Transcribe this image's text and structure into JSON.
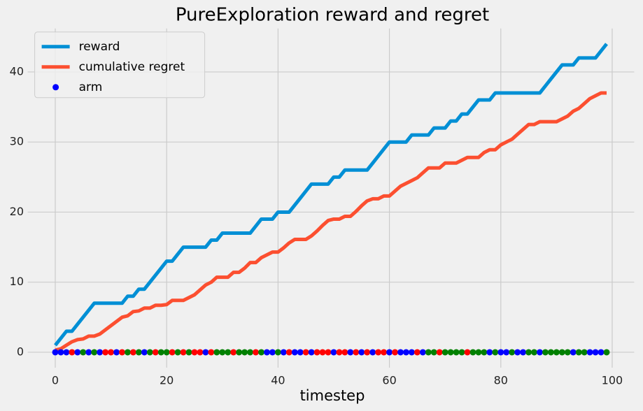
{
  "chart_data": {
    "type": "line",
    "title": "PureExploration reward and regret",
    "x_label": "timestep",
    "x": [
      0,
      1,
      2,
      3,
      4,
      5,
      6,
      7,
      8,
      9,
      10,
      11,
      12,
      13,
      14,
      15,
      16,
      17,
      18,
      19,
      20,
      21,
      22,
      23,
      24,
      25,
      26,
      27,
      28,
      29,
      30,
      31,
      32,
      33,
      34,
      35,
      36,
      37,
      38,
      39,
      40,
      41,
      42,
      43,
      44,
      45,
      46,
      47,
      48,
      49,
      50,
      51,
      52,
      53,
      54,
      55,
      56,
      57,
      58,
      59,
      60,
      61,
      62,
      63,
      64,
      65,
      66,
      67,
      68,
      69,
      70,
      71,
      72,
      73,
      74,
      75,
      76,
      77,
      78,
      79,
      80,
      81,
      82,
      83,
      84,
      85,
      86,
      87,
      88,
      89,
      90,
      91,
      92,
      93,
      94,
      95,
      96,
      97,
      98,
      99
    ],
    "series": [
      {
        "name": "reward",
        "type": "line",
        "color": "#008fd5",
        "values": [
          1,
          2,
          3,
          3,
          4,
          5,
          6,
          7,
          7,
          7,
          7,
          7,
          7,
          8,
          8,
          9,
          9,
          10,
          11,
          12,
          13,
          13,
          14,
          15,
          15,
          15,
          15,
          15,
          16,
          16,
          17,
          17,
          17,
          17,
          17,
          17,
          18,
          19,
          19,
          19,
          20,
          20,
          20,
          21,
          22,
          23,
          24,
          24,
          24,
          24,
          25,
          25,
          26,
          26,
          26,
          26,
          26,
          27,
          28,
          29,
          30,
          30,
          30,
          30,
          31,
          31,
          31,
          31,
          32,
          32,
          32,
          33,
          33,
          34,
          34,
          35,
          36,
          36,
          36,
          37,
          37,
          37,
          37,
          37,
          37,
          37,
          37,
          37,
          38,
          39,
          40,
          41,
          41,
          41,
          42,
          42,
          42,
          42,
          43,
          44
        ]
      },
      {
        "name": "cumulative regret",
        "type": "line",
        "color": "#fc4f30",
        "values": [
          0.3,
          0.5,
          1.0,
          1.5,
          1.8,
          1.9,
          2.3,
          2.3,
          2.6,
          3.2,
          3.8,
          4.4,
          5.0,
          5.2,
          5.8,
          5.9,
          6.3,
          6.3,
          6.7,
          6.7,
          6.8,
          7.4,
          7.4,
          7.4,
          7.8,
          8.2,
          8.9,
          9.6,
          10.0,
          10.7,
          10.7,
          10.7,
          11.4,
          11.4,
          12.0,
          12.8,
          12.8,
          13.5,
          13.9,
          14.3,
          14.3,
          14.9,
          15.6,
          16.1,
          16.1,
          16.1,
          16.6,
          17.3,
          18.1,
          18.8,
          19.0,
          19.0,
          19.4,
          19.4,
          20.1,
          20.9,
          21.6,
          21.9,
          21.9,
          22.3,
          22.3,
          23.0,
          23.7,
          24.1,
          24.5,
          24.9,
          25.6,
          26.3,
          26.3,
          26.3,
          27.0,
          27.0,
          27.0,
          27.4,
          27.8,
          27.8,
          27.8,
          28.5,
          28.9,
          28.9,
          29.6,
          30.0,
          30.4,
          31.1,
          31.8,
          32.5,
          32.5,
          32.9,
          32.9,
          32.9,
          32.9,
          33.3,
          33.7,
          34.4,
          34.8,
          35.5,
          36.2,
          36.6,
          37.0,
          37.0
        ]
      },
      {
        "name": "arm",
        "type": "scatter",
        "color": "blue",
        "values": [
          0,
          0,
          0,
          0,
          0,
          0,
          0,
          0,
          0,
          0,
          0,
          0,
          0,
          0,
          0,
          0,
          0,
          0,
          0,
          0,
          0,
          0,
          0,
          0,
          0,
          0,
          0,
          0,
          0,
          0,
          0,
          0,
          0,
          0,
          0,
          0,
          0,
          0,
          0,
          0,
          0,
          0,
          0,
          0,
          0,
          0,
          0,
          0,
          0,
          0,
          0,
          0,
          0,
          0,
          0,
          0,
          0,
          0,
          0,
          0,
          0,
          0,
          0,
          0,
          0,
          0,
          0,
          0,
          0,
          0,
          0,
          0,
          0,
          0,
          0,
          0,
          0,
          0,
          0,
          0,
          0,
          0,
          0,
          0,
          0,
          0,
          0,
          0,
          0,
          0,
          0,
          0,
          0,
          0,
          0,
          0,
          0,
          0,
          0,
          0
        ],
        "colors": [
          "blue",
          "blue",
          "blue",
          "red",
          "blue",
          "green",
          "blue",
          "green",
          "blue",
          "red",
          "red",
          "blue",
          "red",
          "green",
          "red",
          "green",
          "blue",
          "green",
          "red",
          "green",
          "green",
          "red",
          "green",
          "red",
          "green",
          "red",
          "red",
          "blue",
          "red",
          "green",
          "green",
          "green",
          "red",
          "green",
          "green",
          "green",
          "red",
          "green",
          "blue",
          "blue",
          "green",
          "blue",
          "red",
          "blue",
          "blue",
          "red",
          "blue",
          "red",
          "red",
          "red",
          "blue",
          "red",
          "red",
          "blue",
          "red",
          "blue",
          "red",
          "blue",
          "red",
          "red",
          "blue",
          "red",
          "blue",
          "blue",
          "blue",
          "red",
          "blue",
          "green",
          "green",
          "red",
          "green",
          "green",
          "green",
          "green",
          "red",
          "green",
          "green",
          "green",
          "blue",
          "green",
          "blue",
          "blue",
          "green",
          "blue",
          "blue",
          "green",
          "green",
          "blue",
          "green",
          "green",
          "green",
          "green",
          "green",
          "blue",
          "green",
          "green",
          "blue",
          "blue",
          "blue",
          "green"
        ]
      }
    ],
    "xlim": [
      -4.95,
      103.95
    ],
    "xticks": [
      0,
      20,
      40,
      60,
      80,
      100
    ],
    "ylim": [
      -2.2,
      46.2
    ],
    "yticks": [
      0,
      10,
      20,
      30,
      40
    ],
    "grid": true,
    "legend": "upper-left"
  }
}
